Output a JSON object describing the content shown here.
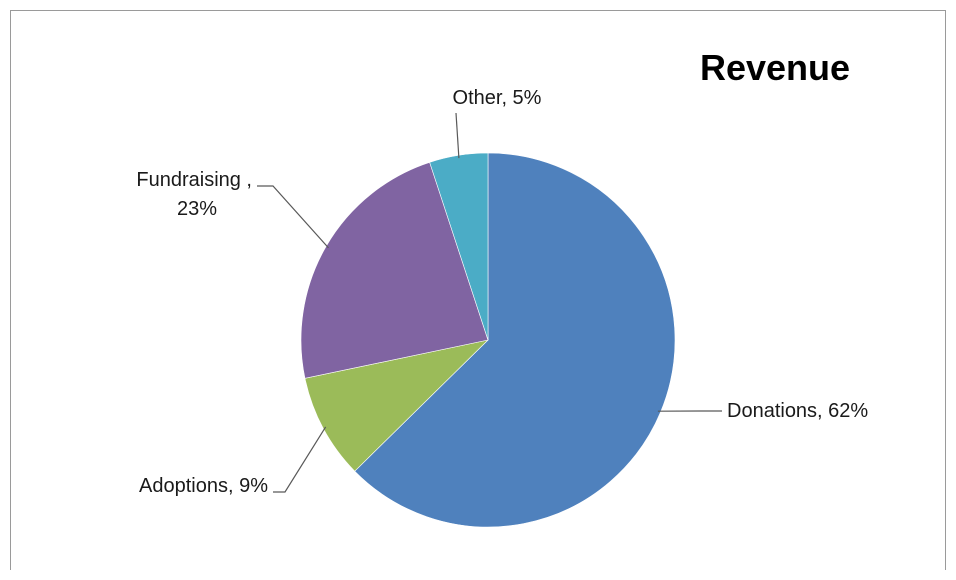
{
  "chart_data": {
    "type": "pie",
    "title": "Revenue",
    "slices": [
      {
        "label": "Donations",
        "value": 62,
        "color": "#4f81bd",
        "label_lines": [
          "Donations, 62%"
        ]
      },
      {
        "label": "Adoptions",
        "value": 9,
        "color": "#9bbb59",
        "label_lines": [
          "Adoptions, 9%"
        ]
      },
      {
        "label": "Fundraising",
        "value": 23,
        "color": "#8064a2",
        "label_lines": [
          "Fundraising ,",
          "23%"
        ]
      },
      {
        "label": "Other",
        "value": 5,
        "color": "#4bacc6",
        "label_lines": [
          "Other, 5%"
        ]
      }
    ],
    "legend": "none",
    "data_labels": "outside with leader lines"
  }
}
